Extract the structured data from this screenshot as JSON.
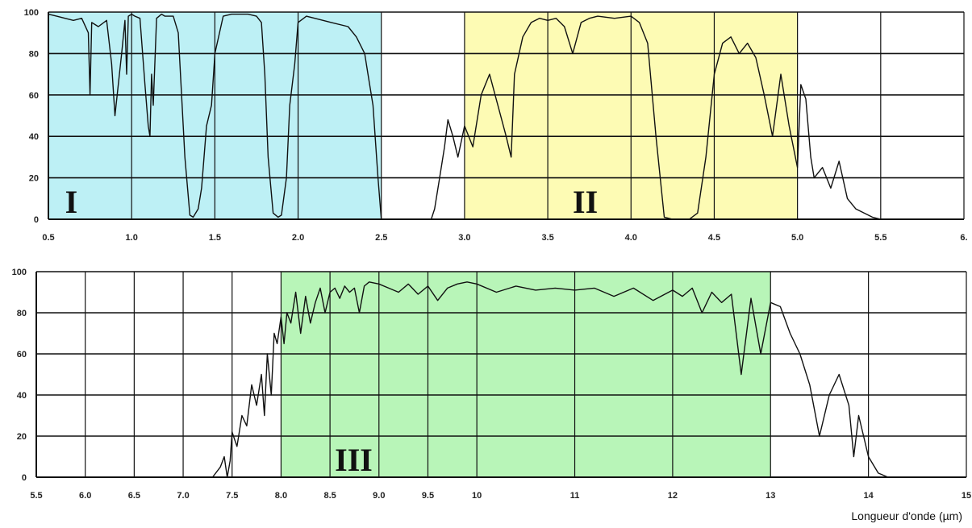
{
  "chart_data": [
    {
      "type": "line",
      "panel": "top",
      "title": "",
      "xlabel": "",
      "ylabel": "",
      "xlim": [
        0.5,
        6.0
      ],
      "ylim": [
        0,
        100
      ],
      "x_ticks": [
        {
          "value": 0.5,
          "label": "0.5"
        },
        {
          "value": 1.0,
          "label": "1.0"
        },
        {
          "value": 1.5,
          "label": "1.5"
        },
        {
          "value": 2.0,
          "label": "2.0"
        },
        {
          "value": 2.5,
          "label": "2.5"
        },
        {
          "value": 3.0,
          "label": "3.0"
        },
        {
          "value": 3.5,
          "label": "3.5"
        },
        {
          "value": 4.0,
          "label": "4.0"
        },
        {
          "value": 4.5,
          "label": "4.5"
        },
        {
          "value": 5.0,
          "label": "5.0"
        },
        {
          "value": 5.5,
          "label": "5.5"
        },
        {
          "value": 6.0,
          "label": "6."
        }
      ],
      "y_ticks": [
        {
          "value": 0,
          "label": "0"
        },
        {
          "value": 20,
          "label": "20"
        },
        {
          "value": 40,
          "label": "40"
        },
        {
          "value": 60,
          "label": "60"
        },
        {
          "value": 80,
          "label": "80"
        },
        {
          "value": 100,
          "label": "100"
        }
      ],
      "grid": true,
      "bands": [
        {
          "label": "I",
          "x_start": 0.5,
          "x_end": 2.5,
          "color": "#bdf0f5",
          "label_x": 0.6
        },
        {
          "label": "II",
          "x_start": 3.0,
          "x_end": 5.0,
          "color": "#fdfbb4",
          "label_x": 3.65
        }
      ],
      "series": [
        {
          "x": [
            0.5,
            0.55,
            0.6,
            0.65,
            0.7,
            0.74,
            0.75,
            0.76,
            0.8,
            0.85,
            0.88,
            0.9,
            0.94,
            0.96,
            0.97,
            0.98,
            1.0,
            1.02,
            1.05,
            1.08,
            1.1,
            1.11,
            1.12,
            1.13,
            1.15,
            1.18,
            1.2,
            1.25,
            1.28,
            1.3,
            1.32,
            1.35,
            1.37,
            1.4,
            1.42,
            1.45,
            1.48,
            1.5,
            1.55,
            1.6,
            1.65,
            1.7,
            1.75,
            1.78,
            1.8,
            1.82,
            1.85,
            1.88,
            1.9,
            1.93,
            1.95,
            1.98,
            2.0,
            2.05,
            2.1,
            2.2,
            2.3,
            2.35,
            2.4,
            2.42,
            2.45,
            2.48,
            2.5,
            2.52,
            2.55,
            2.6,
            2.7,
            2.8,
            2.82,
            2.85,
            2.88,
            2.9,
            2.93,
            2.96,
            3.0,
            3.05,
            3.1,
            3.15,
            3.2,
            3.25,
            3.28,
            3.3,
            3.35,
            3.4,
            3.45,
            3.5,
            3.55,
            3.6,
            3.65,
            3.7,
            3.75,
            3.8,
            3.9,
            4.0,
            4.05,
            4.1,
            4.15,
            4.2,
            4.25,
            4.3,
            4.35,
            4.4,
            4.45,
            4.5,
            4.55,
            4.6,
            4.65,
            4.7,
            4.75,
            4.8,
            4.85,
            4.9,
            4.95,
            5.0,
            5.02,
            5.05,
            5.08,
            5.1,
            5.15,
            5.2,
            5.25,
            5.3,
            5.35,
            5.4,
            5.45,
            5.5,
            5.6,
            5.7,
            5.8,
            6.0
          ],
          "y": [
            99,
            98,
            97,
            96,
            97,
            90,
            60,
            95,
            93,
            96,
            75,
            50,
            80,
            96,
            70,
            98,
            99,
            98,
            97,
            65,
            45,
            40,
            70,
            55,
            97,
            99,
            98,
            98,
            90,
            60,
            30,
            2,
            1,
            5,
            15,
            45,
            55,
            80,
            98,
            99,
            99,
            99,
            98,
            95,
            70,
            30,
            3,
            1,
            2,
            20,
            55,
            75,
            95,
            98,
            97,
            95,
            93,
            88,
            80,
            70,
            55,
            20,
            0,
            0,
            0,
            0,
            0,
            0,
            5,
            20,
            35,
            48,
            40,
            30,
            45,
            35,
            60,
            70,
            55,
            40,
            30,
            70,
            88,
            95,
            97,
            96,
            97,
            93,
            80,
            95,
            97,
            98,
            97,
            98,
            95,
            85,
            40,
            1,
            0,
            0,
            0,
            3,
            30,
            70,
            85,
            88,
            80,
            85,
            78,
            60,
            40,
            70,
            45,
            25,
            65,
            58,
            30,
            20,
            25,
            15,
            28,
            10,
            5,
            3,
            1,
            0,
            0,
            0,
            0,
            0
          ]
        }
      ]
    },
    {
      "type": "line",
      "panel": "bottom",
      "title": "",
      "xlabel": "Longueur d'onde (µm)",
      "ylabel": "",
      "xlim": [
        5.5,
        15
      ],
      "ylim": [
        0,
        100
      ],
      "x_ticks": [
        {
          "value": 5.5,
          "label": "5.5"
        },
        {
          "value": 6.0,
          "label": "6.0"
        },
        {
          "value": 6.5,
          "label": "6.5"
        },
        {
          "value": 7.0,
          "label": "7.0"
        },
        {
          "value": 7.5,
          "label": "7.5"
        },
        {
          "value": 8.0,
          "label": "8.0"
        },
        {
          "value": 8.5,
          "label": "8.5"
        },
        {
          "value": 9.0,
          "label": "9.0"
        },
        {
          "value": 9.5,
          "label": "9.5"
        },
        {
          "value": 10,
          "label": "10"
        },
        {
          "value": 11,
          "label": "11"
        },
        {
          "value": 12,
          "label": "12"
        },
        {
          "value": 13,
          "label": "13"
        },
        {
          "value": 14,
          "label": "14"
        },
        {
          "value": 15,
          "label": "15"
        }
      ],
      "y_ticks": [
        {
          "value": 0,
          "label": "0"
        },
        {
          "value": 20,
          "label": "20"
        },
        {
          "value": 40,
          "label": "40"
        },
        {
          "value": 60,
          "label": "60"
        },
        {
          "value": 80,
          "label": "80"
        },
        {
          "value": 100,
          "label": "100"
        }
      ],
      "grid": true,
      "bands": [
        {
          "label": "III",
          "x_start": 8.0,
          "x_end": 13.0,
          "color": "#b8f5b8",
          "label_x": 8.55
        }
      ],
      "series": [
        {
          "x": [
            5.5,
            6.0,
            6.5,
            7.0,
            7.3,
            7.38,
            7.42,
            7.45,
            7.48,
            7.5,
            7.55,
            7.6,
            7.65,
            7.7,
            7.75,
            7.8,
            7.83,
            7.86,
            7.9,
            7.93,
            7.96,
            8.0,
            8.03,
            8.06,
            8.1,
            8.15,
            8.2,
            8.25,
            8.3,
            8.35,
            8.4,
            8.45,
            8.5,
            8.55,
            8.6,
            8.65,
            8.7,
            8.75,
            8.8,
            8.85,
            8.9,
            9.0,
            9.1,
            9.2,
            9.3,
            9.4,
            9.5,
            9.6,
            9.7,
            9.8,
            9.9,
            10.0,
            10.2,
            10.4,
            10.6,
            10.8,
            11.0,
            11.2,
            11.4,
            11.6,
            11.8,
            12.0,
            12.1,
            12.2,
            12.3,
            12.4,
            12.5,
            12.6,
            12.7,
            12.8,
            12.9,
            13.0,
            13.1,
            13.2,
            13.3,
            13.4,
            13.5,
            13.6,
            13.7,
            13.8,
            13.85,
            13.9,
            13.95,
            14.0,
            14.1,
            14.2,
            14.5,
            15.0
          ],
          "y": [
            0,
            0,
            0,
            0,
            0,
            5,
            10,
            0,
            8,
            22,
            15,
            30,
            25,
            45,
            35,
            50,
            30,
            60,
            40,
            70,
            65,
            78,
            65,
            80,
            75,
            90,
            70,
            88,
            75,
            85,
            92,
            80,
            90,
            92,
            87,
            93,
            90,
            92,
            80,
            93,
            95,
            94,
            92,
            90,
            94,
            89,
            93,
            86,
            92,
            94,
            95,
            94,
            90,
            93,
            91,
            92,
            91,
            92,
            88,
            92,
            86,
            91,
            88,
            92,
            80,
            90,
            85,
            89,
            50,
            87,
            60,
            85,
            83,
            70,
            60,
            45,
            20,
            40,
            50,
            35,
            10,
            30,
            20,
            10,
            2,
            0,
            0,
            0
          ]
        }
      ]
    }
  ]
}
